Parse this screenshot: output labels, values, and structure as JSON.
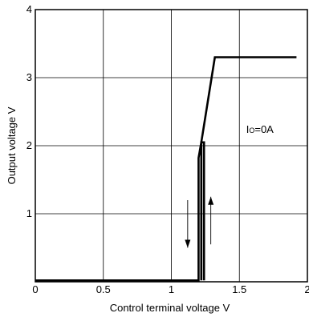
{
  "chart_data": {
    "type": "line",
    "xlabel": "Control terminal voltage  V",
    "ylabel": "Output voltage  V",
    "xlim": [
      0,
      2
    ],
    "ylim": [
      0,
      4
    ],
    "x_ticks": [
      "0",
      "0.5",
      "1",
      "1.5",
      "2"
    ],
    "y_ticks": [
      "1",
      "2",
      "3",
      "4"
    ],
    "grid": true,
    "series": [
      {
        "points": [
          [
            0,
            0.02
          ],
          [
            1.2,
            0.02
          ],
          [
            1.2,
            1.82
          ],
          [
            1.22,
            2.05
          ],
          [
            1.32,
            3.3
          ],
          [
            1.92,
            3.3
          ]
        ]
      },
      {
        "points": [
          [
            1.22,
            0.02
          ],
          [
            1.22,
            2.05
          ],
          [
            1.24,
            2.05
          ],
          [
            1.24,
            0.02
          ]
        ]
      }
    ],
    "annotation": {
      "text_main": "I",
      "text_sub": "O",
      "text_rest": "=0A",
      "x": 1.55,
      "y": 2.25
    },
    "arrows": [
      {
        "direction": "down",
        "x": 1.12,
        "y_from": 1.2,
        "y_to": 0.5
      },
      {
        "direction": "up",
        "x": 1.29,
        "y_from": 0.55,
        "y_to": 1.25
      }
    ]
  }
}
